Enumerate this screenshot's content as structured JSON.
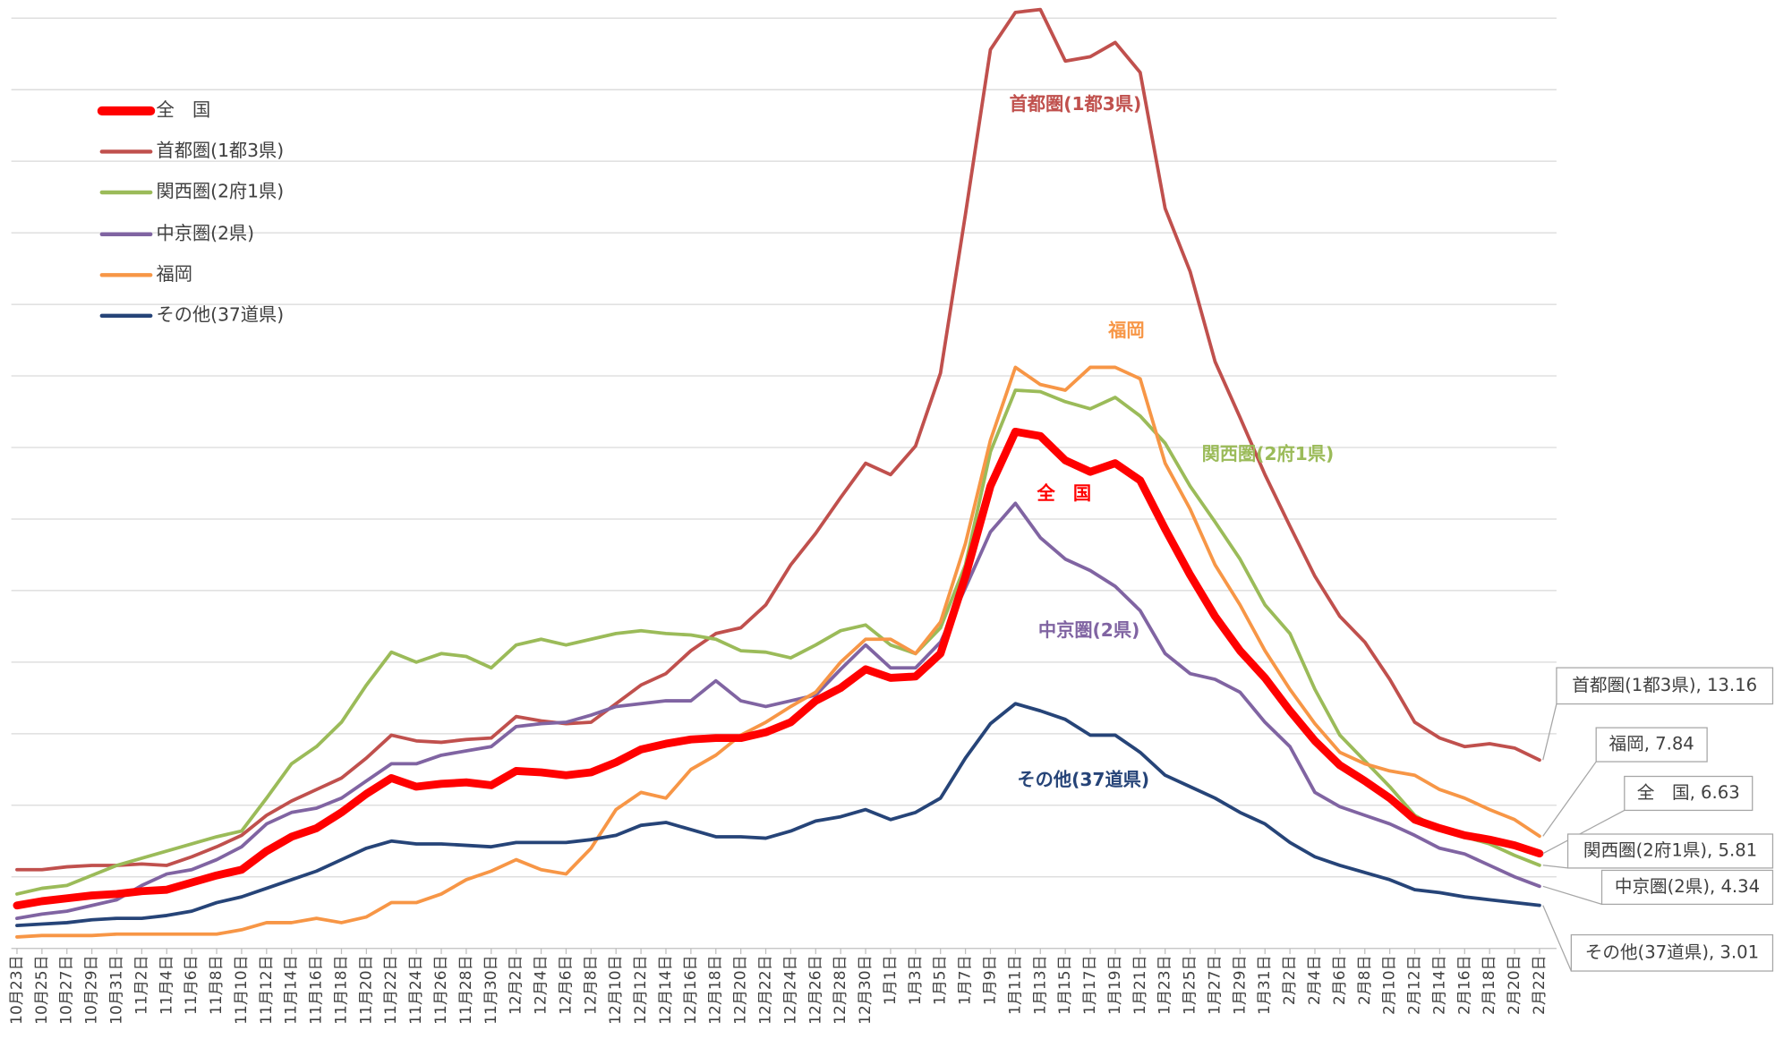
{
  "chart_data": {
    "type": "line",
    "categories": [
      "10月23日",
      "10月25日",
      "10月27日",
      "10月29日",
      "10月31日",
      "11月2日",
      "11月4日",
      "11月6日",
      "11月8日",
      "11月10日",
      "11月12日",
      "11月14日",
      "11月16日",
      "11月18日",
      "11月20日",
      "11月22日",
      "11月24日",
      "11月26日",
      "11月28日",
      "11月30日",
      "12月2日",
      "12月4日",
      "12月6日",
      "12月8日",
      "12月10日",
      "12月12日",
      "12月14日",
      "12月16日",
      "12月18日",
      "12月20日",
      "12月22日",
      "12月24日",
      "12月26日",
      "12月28日",
      "12月30日",
      "1月1日",
      "1月3日",
      "1月5日",
      "1月7日",
      "1月9日",
      "1月11日",
      "1月13日",
      "1月15日",
      "1月17日",
      "1月19日",
      "1月21日",
      "1月23日",
      "1月25日",
      "1月27日",
      "1月29日",
      "1月31日",
      "2月2日",
      "2月4日",
      "2月6日",
      "2月8日",
      "2月10日",
      "2月12日",
      "2月14日",
      "2月16日",
      "2月18日",
      "2月20日",
      "2月22日"
    ],
    "series": [
      {
        "name": "全　国",
        "color": "#ff0000",
        "end_label": "全　国, 6.63",
        "values": [
          3.0,
          3.3,
          3.5,
          3.7,
          3.8,
          4.0,
          4.1,
          4.6,
          5.1,
          5.5,
          6.8,
          7.8,
          8.4,
          9.5,
          10.8,
          11.9,
          11.3,
          11.5,
          11.6,
          11.4,
          12.4,
          12.3,
          12.1,
          12.3,
          13.0,
          13.9,
          14.3,
          14.6,
          14.7,
          14.7,
          15.1,
          15.8,
          17.3,
          18.2,
          19.5,
          18.9,
          19.0,
          20.6,
          26.0,
          32.3,
          36.1,
          35.8,
          34.1,
          33.3,
          33.9,
          32.7,
          29.3,
          26.1,
          23.2,
          20.8,
          18.9,
          16.6,
          14.5,
          12.8,
          11.7,
          10.5,
          9.0,
          8.4,
          7.9,
          7.6,
          7.2,
          6.63
        ]
      },
      {
        "name": "首都圏(1都3県)",
        "color": "#c0504d",
        "end_label": "首都圏(1都3県), 13.16",
        "values": [
          5.5,
          5.5,
          5.7,
          5.8,
          5.8,
          5.9,
          5.8,
          6.4,
          7.1,
          7.9,
          9.3,
          10.3,
          11.1,
          11.9,
          13.3,
          14.9,
          14.5,
          14.4,
          14.6,
          14.7,
          16.2,
          15.9,
          15.7,
          15.8,
          17.1,
          18.4,
          19.2,
          20.8,
          22.0,
          22.4,
          24.0,
          26.8,
          29.0,
          31.5,
          33.9,
          33.1,
          35.1,
          40.2,
          51.3,
          62.8,
          65.4,
          65.6,
          62.0,
          62.3,
          63.3,
          61.2,
          51.7,
          47.3,
          41.0,
          37.1,
          33.1,
          29.5,
          26.0,
          23.2,
          21.4,
          18.8,
          15.8,
          14.7,
          14.1,
          14.3,
          14.0,
          13.16
        ]
      },
      {
        "name": "関西圏(2府1県)",
        "color": "#9bbb59",
        "end_label": "関西圏(2府1県), 5.81",
        "values": [
          3.8,
          4.2,
          4.4,
          5.1,
          5.8,
          6.3,
          6.8,
          7.3,
          7.8,
          8.2,
          10.5,
          12.9,
          14.1,
          15.8,
          18.4,
          20.7,
          20.0,
          20.6,
          20.4,
          19.6,
          21.2,
          21.6,
          21.2,
          21.6,
          22.0,
          22.2,
          22.0,
          21.9,
          21.6,
          20.8,
          20.7,
          20.3,
          21.2,
          22.2,
          22.6,
          21.2,
          20.6,
          22.4,
          26.8,
          34.7,
          39.0,
          38.9,
          38.2,
          37.7,
          38.5,
          37.2,
          35.3,
          32.3,
          29.8,
          27.2,
          24.0,
          22.0,
          18.1,
          14.9,
          13.1,
          11.3,
          9.3,
          8.3,
          7.8,
          7.3,
          6.5,
          5.81
        ]
      },
      {
        "name": "中京圏(2県)",
        "color": "#8064a2",
        "end_label": "中京圏(2県), 4.34",
        "values": [
          2.1,
          2.4,
          2.6,
          3.0,
          3.4,
          4.4,
          5.2,
          5.5,
          6.2,
          7.1,
          8.7,
          9.5,
          9.8,
          10.5,
          11.7,
          12.9,
          12.9,
          13.5,
          13.8,
          14.1,
          15.5,
          15.7,
          15.8,
          16.3,
          16.9,
          17.1,
          17.3,
          17.3,
          18.7,
          17.3,
          16.9,
          17.3,
          17.7,
          19.5,
          21.2,
          19.6,
          19.6,
          21.4,
          25.2,
          29.1,
          31.1,
          28.7,
          27.2,
          26.4,
          25.3,
          23.6,
          20.6,
          19.2,
          18.8,
          17.9,
          15.8,
          14.1,
          10.9,
          9.9,
          9.3,
          8.7,
          7.9,
          7.0,
          6.6,
          5.8,
          5.0,
          4.34
        ]
      },
      {
        "name": "福岡",
        "color": "#f79646",
        "end_label": "福岡, 7.84",
        "values": [
          0.8,
          0.9,
          0.9,
          0.9,
          1.0,
          1.0,
          1.0,
          1.0,
          1.0,
          1.3,
          1.8,
          1.8,
          2.1,
          1.8,
          2.2,
          3.2,
          3.2,
          3.8,
          4.8,
          5.4,
          6.2,
          5.5,
          5.2,
          7.0,
          9.7,
          10.9,
          10.5,
          12.5,
          13.5,
          14.9,
          15.8,
          16.9,
          17.9,
          20.0,
          21.6,
          21.6,
          20.6,
          22.8,
          28.3,
          35.5,
          40.6,
          39.4,
          39.0,
          40.6,
          40.6,
          39.8,
          33.9,
          30.7,
          26.8,
          24.0,
          20.8,
          18.1,
          15.7,
          13.7,
          12.9,
          12.4,
          12.1,
          11.1,
          10.5,
          9.7,
          9.0,
          7.84
        ]
      },
      {
        "name": "その他(37道県)",
        "color": "#264478",
        "end_label": "その他(37道県), 3.01",
        "values": [
          1.6,
          1.7,
          1.8,
          2.0,
          2.1,
          2.1,
          2.3,
          2.6,
          3.2,
          3.6,
          4.2,
          4.8,
          5.4,
          6.2,
          7.0,
          7.5,
          7.3,
          7.3,
          7.2,
          7.1,
          7.4,
          7.4,
          7.4,
          7.6,
          7.9,
          8.6,
          8.8,
          8.3,
          7.8,
          7.8,
          7.7,
          8.2,
          8.9,
          9.2,
          9.7,
          9.0,
          9.5,
          10.5,
          13.3,
          15.7,
          17.1,
          16.6,
          16.0,
          14.9,
          14.9,
          13.7,
          12.1,
          11.3,
          10.5,
          9.5,
          8.7,
          7.4,
          6.4,
          5.8,
          5.3,
          4.8,
          4.1,
          3.9,
          3.6,
          3.4,
          3.2,
          3.01
        ]
      }
    ],
    "ylim": [
      0,
      65
    ],
    "ygrid": [
      0,
      5,
      10,
      15,
      20,
      25,
      30,
      35,
      40,
      45,
      50,
      55,
      60,
      65
    ]
  }
}
